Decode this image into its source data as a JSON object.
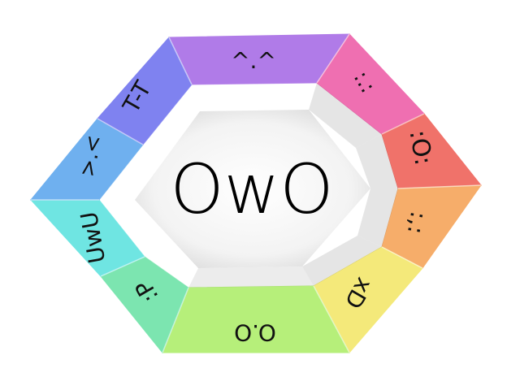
{
  "center": {
    "label": "OwO"
  },
  "segments": [
    {
      "key": "top",
      "emote": "^.^",
      "color": "#b07be8"
    },
    {
      "key": "top-right",
      "emote": ":.:",
      "color": "#ef6fb1"
    },
    {
      "key": "right-upper",
      "emote": ":O:",
      "color": "#f0726a"
    },
    {
      "key": "right-lower",
      "emote": ":,:",
      "color": "#f6ad6a"
    },
    {
      "key": "bottom-right",
      "emote": "xD",
      "color": "#f4e97a"
    },
    {
      "key": "bottom",
      "emote": "O.O",
      "color": "#b6ef7a"
    },
    {
      "key": "bottom-left",
      "emote": ":P",
      "color": "#7ce5b0"
    },
    {
      "key": "left-lower",
      "emote": "UwU",
      "color": "#6fe5e2"
    },
    {
      "key": "left-upper",
      "emote": ">.<",
      "color": "#6fb0ef"
    },
    {
      "key": "top-left",
      "emote": "T-T",
      "color": "#7f82f0"
    }
  ]
}
